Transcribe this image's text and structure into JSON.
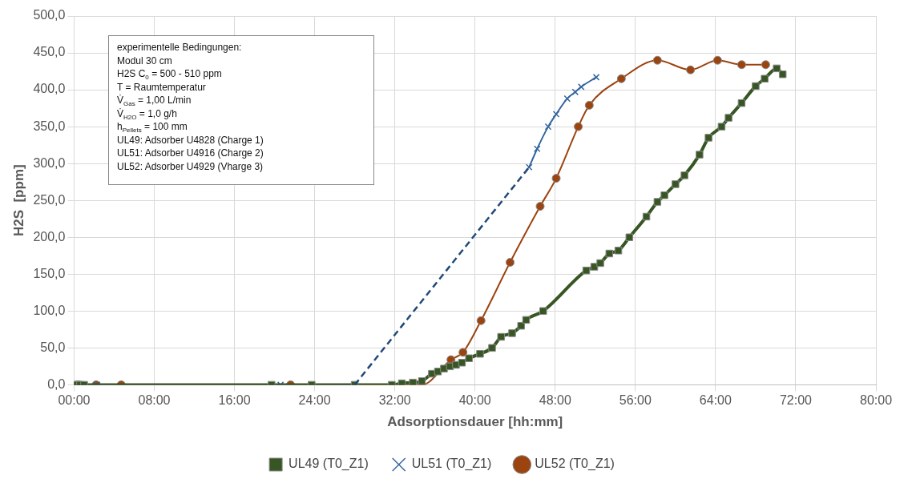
{
  "chart_data": {
    "type": "line",
    "xlabel": "Adsorptionsdauer [hh:mm]",
    "ylabel": "H2S  [ppm]",
    "xlim": [
      0,
      80
    ],
    "xticks": [
      {
        "value": 0,
        "label": "00:00"
      },
      {
        "value": 8,
        "label": "08:00"
      },
      {
        "value": 16,
        "label": "16:00"
      },
      {
        "value": 24,
        "label": "24:00"
      },
      {
        "value": 32,
        "label": "32:00"
      },
      {
        "value": 40,
        "label": "40:00"
      },
      {
        "value": 48,
        "label": "48:00"
      },
      {
        "value": 56,
        "label": "56:00"
      },
      {
        "value": 64,
        "label": "64:00"
      },
      {
        "value": 72,
        "label": "72:00"
      },
      {
        "value": 80,
        "label": "80:00"
      }
    ],
    "ylim": [
      0,
      500
    ],
    "yticks": [
      {
        "value": 0,
        "label": "0,0"
      },
      {
        "value": 50,
        "label": "50,0"
      },
      {
        "value": 100,
        "label": "100,0"
      },
      {
        "value": 150,
        "label": "150,0"
      },
      {
        "value": 200,
        "label": "200,0"
      },
      {
        "value": 250,
        "label": "250,0"
      },
      {
        "value": 300,
        "label": "300,0"
      },
      {
        "value": 350,
        "label": "350,0"
      },
      {
        "value": 400,
        "label": "400,0"
      },
      {
        "value": 450,
        "label": "450,0"
      },
      {
        "value": 500,
        "label": "500,0"
      }
    ],
    "grid": true,
    "legend": "bottom",
    "line_style": "solid",
    "annotations": [
      "experimentelle Bedingungen:",
      "Modul 30 cm",
      "H2S C$_{0}$ = 500 - 510 ppm",
      "T = Raumtemperatur",
      "V̇$_{Gas}$ = 1,00 L/min",
      "V̇$_{H2O}$ = 1,0 g/h",
      "h$_{Pellets}$ = 100 mm",
      "UL49: Adsorber U4828 (Charge 1)",
      "UL51: Adsorber U4916 (Charge 2)",
      "UL52: Adsorber U4929 (Vharge 3)"
    ],
    "series": [
      {
        "name": "UL49 (T0_Z1)",
        "color": "#375623",
        "marker": "square",
        "x": [
          0,
          0.3,
          0.6,
          1.0,
          19.7,
          23.7,
          28.0,
          31.7,
          32.7,
          33.8,
          34.7,
          35.7,
          36.3,
          36.9,
          37.5,
          38.1,
          38.7,
          39.4,
          40.5,
          41.7,
          42.6,
          43.7,
          44.6,
          45.1,
          46.8,
          51.1,
          51.9,
          52.5,
          53.4,
          54.3,
          55.4,
          57.1,
          58.2,
          58.9,
          60.0,
          60.9,
          62.4,
          63.3,
          64.6,
          65.3,
          66.6,
          68.0,
          68.9,
          70.1,
          70.7
        ],
        "values": [
          0,
          0,
          0,
          0,
          0,
          0,
          0,
          0,
          2,
          3,
          5,
          15,
          18,
          22,
          25,
          27,
          30,
          36,
          42,
          50,
          65,
          70,
          80,
          88,
          100,
          155,
          160,
          165,
          178,
          182,
          200,
          228,
          248,
          257,
          272,
          284,
          312,
          335,
          350,
          362,
          382,
          405,
          415,
          429,
          421
        ]
      },
      {
        "name": "UL51 (T0_Z1)",
        "color": "#3466a0",
        "marker": "cross",
        "x": [
          0.5,
          2.3,
          20.6,
          28.0,
          null,
          45.4,
          46.2,
          47.3,
          48.1,
          49.2,
          50.0,
          50.6,
          52.1
        ],
        "values": [
          0,
          0,
          0,
          0,
          null,
          295,
          320,
          350,
          367,
          388,
          397,
          404,
          417
        ]
      },
      {
        "color": "#1f4a78",
        "marker": "none",
        "line_style": "dashed",
        "x": [
          28.0,
          45.4
        ],
        "values": [
          0,
          295
        ]
      },
      {
        "name": "UL52 (T0_Z1)",
        "color": "#9c4410",
        "marker": "circle",
        "x": [
          0.3,
          0.5,
          2.2,
          4.7,
          21.6,
          34.7,
          37.6,
          38.8,
          40.6,
          43.5,
          46.5,
          48.1,
          50.3,
          51.4,
          54.6,
          58.2,
          61.5,
          64.2,
          66.6,
          69.0
        ],
        "values": [
          0,
          0,
          0,
          0,
          0,
          0,
          34,
          44,
          87,
          166,
          242,
          280,
          350,
          379,
          415,
          440,
          427,
          440,
          434,
          434
        ]
      }
    ]
  }
}
